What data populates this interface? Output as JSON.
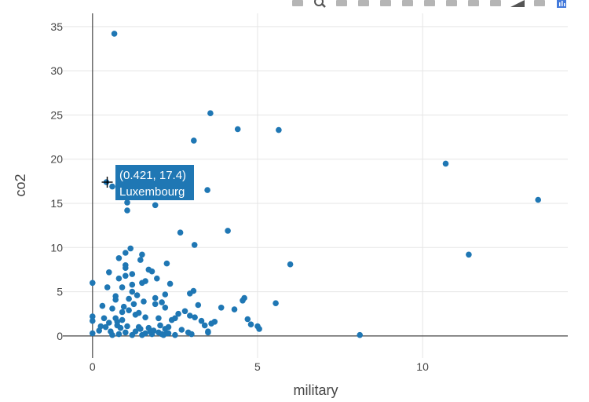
{
  "modebar": {
    "icons": [
      "camera-icon",
      "zoom-icon",
      "pan-icon",
      "box-select-icon",
      "lasso-select-icon",
      "zoom-in-icon",
      "zoom-out-icon",
      "autoscale-icon",
      "reset-axes-icon",
      "spike-lines-icon",
      "hover-closest-icon",
      "hover-compare-icon",
      "plotly-logo-icon"
    ]
  },
  "colors": {
    "marker": "#1f77b4",
    "grid": "#e5e5e5",
    "axis": "#444444",
    "hover_bg": "#1f77b4",
    "hover_text": "#ffffff"
  },
  "hover": {
    "coords": "(0.421, 17.4)",
    "name": "Luxembourg",
    "point": [
      0.421,
      17.4
    ]
  },
  "chart_data": {
    "type": "scatter",
    "xlabel": "military",
    "ylabel": "co2",
    "xlim": [
      -0.9,
      14.4
    ],
    "ylim": [
      -2.5,
      36.5
    ],
    "xticks": [
      0,
      5,
      10
    ],
    "xtick_labels": [
      "0",
      "5",
      "10"
    ],
    "yticks": [
      0,
      5,
      10,
      15,
      20,
      25,
      30,
      35
    ],
    "ytick_labels": [
      "0",
      "5",
      "10",
      "15",
      "20",
      "25",
      "30",
      "35"
    ],
    "grid": true,
    "legend": "none",
    "x": [
      0.66,
      3.57,
      4.4,
      5.64,
      3.07,
      10.7,
      13.5,
      11.4,
      3.48,
      0.42,
      0.6,
      1.05,
      1.9,
      1.05,
      2.66,
      4.1,
      3.09,
      5.99,
      1.15,
      1.5,
      1.0,
      1.45,
      2.25,
      1.0,
      1.8,
      1.2,
      1.95,
      2.35,
      0.5,
      0.8,
      1.5,
      3.06,
      2.95,
      0.9,
      1.2,
      1.9,
      4.6,
      4.55,
      5.55,
      0.0,
      0.45,
      0.7,
      1.1,
      2.1,
      3.2,
      4.3,
      3.9,
      0.0,
      0.3,
      0.35,
      0.5,
      0.7,
      0.9,
      1.3,
      1.6,
      2.0,
      2.4,
      2.5,
      2.6,
      2.8,
      2.95,
      3.1,
      3.3,
      3.4,
      3.6,
      3.7,
      4.7,
      5.0,
      5.05,
      0.0,
      0.2,
      0.25,
      0.4,
      0.55,
      0.75,
      0.85,
      1.0,
      1.05,
      1.4,
      1.45,
      1.7,
      1.75,
      2.05,
      2.1,
      2.2,
      2.25,
      2.3,
      2.7,
      2.9,
      3.5,
      4.8,
      0.0,
      0.6,
      0.8,
      1.2,
      1.3,
      1.5,
      1.6,
      1.8,
      1.85,
      2.0,
      2.15,
      2.3,
      2.5,
      3.0,
      3.5,
      8.1,
      0.95,
      1.25,
      0.7,
      1.55,
      0.9,
      1.35,
      0.6,
      1.1,
      1.0,
      1.7,
      0.8,
      1.2,
      1.6,
      1.0,
      2.2,
      0.75,
      1.4,
      1.9,
      2.2
    ],
    "y": [
      34.2,
      25.2,
      23.4,
      23.3,
      22.1,
      19.5,
      15.4,
      9.2,
      16.5,
      17.4,
      16.9,
      15.1,
      14.8,
      14.2,
      11.7,
      11.9,
      10.3,
      8.1,
      9.9,
      9.2,
      9.4,
      8.6,
      8.2,
      8.0,
      7.3,
      7.0,
      6.5,
      5.9,
      7.2,
      6.5,
      6.0,
      5.1,
      4.8,
      5.5,
      5.0,
      4.3,
      4.3,
      4.0,
      3.7,
      6.0,
      5.5,
      4.5,
      4.2,
      3.8,
      3.5,
      3.0,
      3.2,
      2.2,
      3.4,
      2.0,
      1.5,
      2.0,
      1.8,
      2.4,
      2.1,
      2.0,
      1.8,
      2.0,
      2.5,
      2.8,
      2.3,
      2.1,
      1.7,
      1.2,
      1.4,
      1.6,
      1.9,
      1.1,
      0.8,
      1.7,
      0.6,
      1.1,
      1.0,
      0.5,
      1.2,
      0.9,
      0.4,
      1.1,
      1.0,
      0.8,
      0.9,
      0.5,
      1.2,
      0.2,
      0.8,
      0.3,
      1.0,
      0.7,
      0.4,
      0.5,
      1.3,
      0.3,
      0.1,
      0.2,
      0.1,
      0.5,
      0.1,
      0.3,
      0.2,
      0.6,
      0.4,
      0.1,
      0.3,
      0.1,
      0.2,
      0.4,
      0.1,
      3.3,
      3.6,
      4.1,
      3.9,
      2.7,
      4.6,
      3.1,
      2.9,
      6.8,
      7.5,
      8.8,
      5.8,
      6.2,
      7.7,
      4.7,
      1.6,
      2.6,
      3.6,
      3.2
    ]
  }
}
